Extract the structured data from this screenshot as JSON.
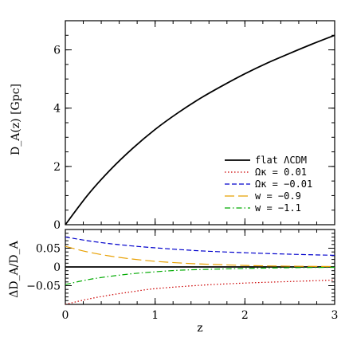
{
  "chart_data": [
    {
      "type": "line",
      "xlabel": "",
      "ylabel": "D_A(z) [Gpc]",
      "xlim": [
        0,
        3
      ],
      "ylim": [
        0,
        7
      ],
      "x_ticks": [
        "0",
        "1",
        "2",
        "3"
      ],
      "y_ticks": [
        "0",
        "2",
        "4",
        "6"
      ],
      "y_tick_values": [
        0,
        2,
        4,
        6
      ],
      "legend_position": "bottom-right",
      "series": [
        {
          "name": "flat ΛCDM",
          "color": "#000000",
          "dash": "solid",
          "x": [
            0,
            0.25,
            0.5,
            0.75,
            1.0,
            1.25,
            1.5,
            1.75,
            2.0,
            2.25,
            2.5,
            2.75,
            3.0
          ],
          "y": [
            0,
            1.02,
            1.88,
            2.62,
            3.27,
            3.83,
            4.33,
            4.77,
            5.18,
            5.55,
            5.88,
            6.2,
            6.5
          ]
        }
      ],
      "legend_only": [
        {
          "name": "Ωκ = 0.01",
          "color": "#cc0000",
          "dash": "dotted"
        },
        {
          "name": "Ωκ = −0.01",
          "color": "#0000cc",
          "dash": "dashed"
        },
        {
          "name": "w = −0.9",
          "color": "#e8a000",
          "dash": "longdash"
        },
        {
          "name": "w = −1.1",
          "color": "#00aa00",
          "dash": "dashdot"
        }
      ]
    },
    {
      "type": "line",
      "xlabel": "z",
      "ylabel": "ΔD_A/D_A",
      "xlim": [
        0,
        3
      ],
      "ylim": [
        -0.1,
        0.1
      ],
      "x_ticks": [
        "0",
        "1",
        "2",
        "3"
      ],
      "y_ticks": [
        "0.05",
        "0",
        "−0.05"
      ],
      "y_tick_values": [
        0.05,
        0,
        -0.05
      ],
      "series": [
        {
          "name": "flat ΛCDM",
          "color": "#000000",
          "dash": "solid",
          "x": [
            0,
            3
          ],
          "y": [
            0,
            0
          ]
        },
        {
          "name": "Ωκ = 0.01",
          "color": "#cc0000",
          "dash": "dotted",
          "x": [
            0,
            0.25,
            0.5,
            0.75,
            1.0,
            1.5,
            2.0,
            2.5,
            3.0
          ],
          "y": [
            -0.1,
            -0.086,
            -0.075,
            -0.066,
            -0.058,
            -0.049,
            -0.043,
            -0.039,
            -0.035
          ]
        },
        {
          "name": "Ωκ = −0.01",
          "color": "#0000cc",
          "dash": "dashed",
          "x": [
            0,
            0.25,
            0.5,
            0.75,
            1.0,
            1.5,
            2.0,
            2.5,
            3.0
          ],
          "y": [
            0.08,
            0.07,
            0.062,
            0.056,
            0.051,
            0.043,
            0.038,
            0.034,
            0.031
          ]
        },
        {
          "name": "w = −0.9",
          "color": "#e8a000",
          "dash": "longdash",
          "x": [
            0,
            0.25,
            0.5,
            0.75,
            1.0,
            1.25,
            1.5,
            2.0,
            2.5,
            3.0
          ],
          "y": [
            0.055,
            0.04,
            0.029,
            0.021,
            0.015,
            0.011,
            0.008,
            0.004,
            0.002,
            0.001
          ]
        },
        {
          "name": "w = −1.1",
          "color": "#00aa00",
          "dash": "dashdot",
          "x": [
            0,
            0.25,
            0.5,
            0.75,
            1.0,
            1.25,
            1.5,
            2.0,
            2.5,
            3.0
          ],
          "y": [
            -0.047,
            -0.034,
            -0.025,
            -0.018,
            -0.013,
            -0.009,
            -0.007,
            -0.004,
            -0.002,
            -0.001
          ]
        }
      ]
    }
  ]
}
